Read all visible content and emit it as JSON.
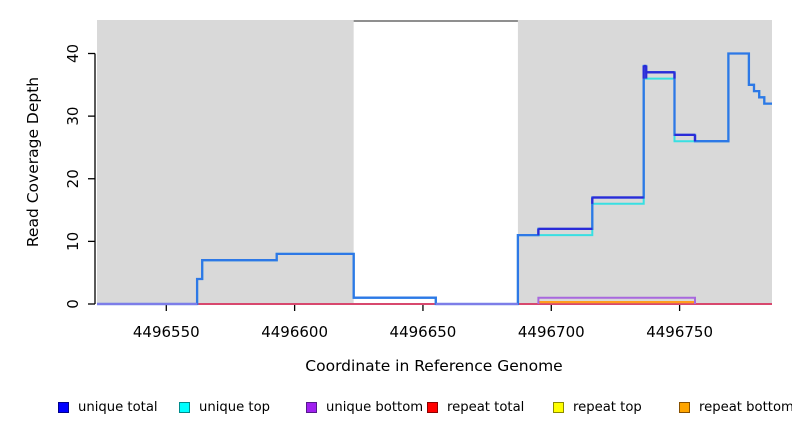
{
  "figure": {
    "colors": {
      "panel_bg": "#d9d9d9",
      "gap_fill": "#ffffff",
      "gap_border": "#8f8f8f",
      "axis": "#000000",
      "repeat_total_line": "#d8486e",
      "repeat_bottom_line": "#ff9e1e",
      "unique_bottom_line": "#a868de",
      "unique_top_line": "#38dfe2",
      "unique_total_overlap_line": "#2d78e6",
      "unique_total_alone_line": "#2b2bd8",
      "unique_total_zero_line": "#7d7de8"
    }
  },
  "chart_data": {
    "type": "line",
    "step": true,
    "title": "",
    "xlabel": "Coordinate in Reference Genome",
    "ylabel": "Read Coverage Depth",
    "xlim": [
      4496523,
      4496786
    ],
    "ylim": [
      0,
      45.35
    ],
    "x_ticks": [
      4496550,
      4496600,
      4496650,
      4496700,
      4496750
    ],
    "y_ticks": [
      0,
      10,
      20,
      30,
      40
    ],
    "grid": false,
    "legend_position": "bottom",
    "gap_region": {
      "x_start": 4496623,
      "x_end": 4496687
    },
    "series": [
      {
        "name": "unique total",
        "legend_color": "#0000ff",
        "legend_border": "#00008b",
        "points": [
          [
            4496523,
            0
          ],
          [
            4496562,
            0
          ],
          [
            4496562,
            4
          ],
          [
            4496564,
            4
          ],
          [
            4496564,
            7
          ],
          [
            4496593,
            7
          ],
          [
            4496593,
            8
          ],
          [
            4496623,
            8
          ],
          [
            4496623,
            1
          ],
          [
            4496655,
            1
          ],
          [
            4496655,
            0
          ],
          [
            4496687,
            0
          ],
          [
            4496687,
            11
          ],
          [
            4496695,
            11
          ],
          [
            4496695,
            12
          ],
          [
            4496716,
            12
          ],
          [
            4496716,
            17
          ],
          [
            4496736,
            17
          ],
          [
            4496736,
            38
          ],
          [
            4496737,
            38
          ],
          [
            4496737,
            37
          ],
          [
            4496748,
            37
          ],
          [
            4496748,
            27
          ],
          [
            4496756,
            27
          ],
          [
            4496756,
            26
          ],
          [
            4496769,
            26
          ],
          [
            4496769,
            40
          ],
          [
            4496777,
            40
          ],
          [
            4496777,
            35
          ],
          [
            4496779,
            35
          ],
          [
            4496779,
            34
          ],
          [
            4496781,
            34
          ],
          [
            4496781,
            33
          ],
          [
            4496783,
            33
          ],
          [
            4496783,
            32
          ],
          [
            4496786,
            32
          ]
        ]
      },
      {
        "name": "unique top",
        "legend_color": "#00ffff",
        "legend_border": "#008b8b",
        "points": [
          [
            4496523,
            0
          ],
          [
            4496562,
            0
          ],
          [
            4496562,
            4
          ],
          [
            4496564,
            4
          ],
          [
            4496564,
            7
          ],
          [
            4496593,
            7
          ],
          [
            4496593,
            8
          ],
          [
            4496623,
            8
          ],
          [
            4496623,
            1
          ],
          [
            4496655,
            1
          ],
          [
            4496655,
            0
          ],
          [
            4496687,
            0
          ],
          [
            4496687,
            11
          ],
          [
            4496716,
            11
          ],
          [
            4496716,
            16
          ],
          [
            4496736,
            16
          ],
          [
            4496736,
            36
          ],
          [
            4496748,
            36
          ],
          [
            4496748,
            26
          ],
          [
            4496769,
            26
          ],
          [
            4496769,
            40
          ],
          [
            4496777,
            40
          ],
          [
            4496777,
            35
          ],
          [
            4496779,
            35
          ],
          [
            4496779,
            34
          ],
          [
            4496781,
            34
          ],
          [
            4496781,
            33
          ],
          [
            4496783,
            33
          ],
          [
            4496783,
            32
          ],
          [
            4496786,
            32
          ]
        ]
      },
      {
        "name": "unique bottom",
        "legend_color": "#a020f0",
        "legend_border": "#551a8b",
        "points": [
          [
            4496695,
            0
          ],
          [
            4496695,
            1
          ],
          [
            4496756,
            1
          ],
          [
            4496756,
            0
          ]
        ]
      },
      {
        "name": "repeat total",
        "legend_color": "#ff0000",
        "legend_border": "#8b0000",
        "points": [
          [
            4496523,
            0
          ],
          [
            4496786,
            0
          ]
        ]
      },
      {
        "name": "repeat top",
        "legend_color": "#ffff00",
        "legend_border": "#8b8b00",
        "points": []
      },
      {
        "name": "repeat bottom",
        "legend_color": "#ffa500",
        "legend_border": "#875000",
        "points": [
          [
            4496695,
            0.3
          ],
          [
            4496756,
            0.3
          ]
        ]
      }
    ]
  }
}
